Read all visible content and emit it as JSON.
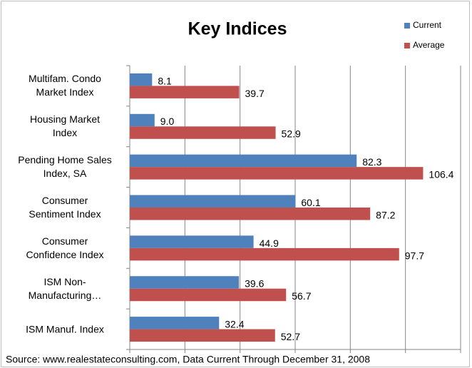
{
  "chart_data": {
    "type": "bar",
    "orientation": "horizontal",
    "title": "Key Indices",
    "categories": [
      "Multifam. Condo\nMarket Index",
      "Housing Market\nIndex",
      "Pending Home Sales\nIndex, SA",
      "Consumer\nSentiment Index",
      "Consumer\nConfidence Index",
      "ISM Non-\nManufacturing…",
      "ISM Manuf. Index"
    ],
    "series": [
      {
        "name": "Current",
        "color": "#4f81bd",
        "values": [
          8.1,
          9.0,
          82.3,
          60.1,
          44.9,
          39.6,
          32.4
        ],
        "value_labels": [
          "8.1",
          "9.0",
          "82.3",
          "60.1",
          "44.9",
          "39.6",
          "32.4"
        ]
      },
      {
        "name": "Average",
        "color": "#c0504d",
        "values": [
          39.7,
          52.9,
          106.4,
          87.2,
          97.7,
          56.7,
          52.7
        ]
      }
    ],
    "xlim": [
      0,
      120
    ],
    "xticks": [
      0,
      20,
      40,
      60,
      80,
      100,
      120
    ],
    "grid": true,
    "legend": "top-right",
    "source": "Source: www.realestateconsulting.com, Data Current Through December 31, 2008"
  }
}
